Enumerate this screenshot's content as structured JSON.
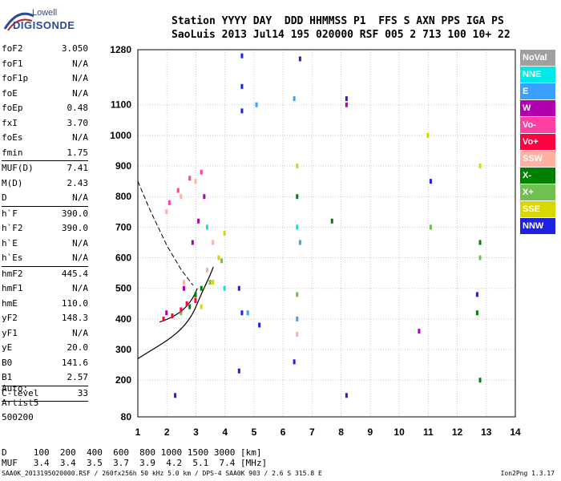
{
  "logo": {
    "top": "Lowell",
    "bottom": "DIGISONDE"
  },
  "header": {
    "line1": "Station YYYY DAY  DDD HHMMSS P1  FFS S AXN PPS IGA PS",
    "line2": "SaoLuis 2013 Jul14 195 020000 RSF 005 2 713 100 10+ 22"
  },
  "params": {
    "group1": [
      {
        "label": "foF2",
        "value": "3.050"
      },
      {
        "label": "foF1",
        "value": "N/A"
      },
      {
        "label": "foF1p",
        "value": "N/A"
      },
      {
        "label": "foE",
        "value": "N/A"
      },
      {
        "label": "foEp",
        "value": "0.48"
      },
      {
        "label": "fxI",
        "value": "3.70"
      },
      {
        "label": "foEs",
        "value": "N/A"
      },
      {
        "label": "fmin",
        "value": "1.75"
      }
    ],
    "group2": [
      {
        "label": "MUF(D)",
        "value": "7.41"
      },
      {
        "label": "M(D)",
        "value": "2.43"
      },
      {
        "label": "D",
        "value": "N/A"
      }
    ],
    "group3": [
      {
        "label": "h`F",
        "value": "390.0"
      },
      {
        "label": "h`F2",
        "value": "390.0"
      },
      {
        "label": "h`E",
        "value": "N/A"
      },
      {
        "label": "h`Es",
        "value": "N/A"
      }
    ],
    "group4": [
      {
        "label": "hmF2",
        "value": "445.4"
      },
      {
        "label": "hmF1",
        "value": "N/A"
      },
      {
        "label": "hmE",
        "value": "110.0"
      },
      {
        "label": "yF2",
        "value": "148.3"
      },
      {
        "label": "yF1",
        "value": "N/A"
      },
      {
        "label": "yE",
        "value": "20.0"
      },
      {
        "label": "B0",
        "value": "141.6"
      },
      {
        "label": "B1",
        "value": "2.57"
      }
    ],
    "group5": [
      {
        "label": "C-level",
        "value": "33"
      }
    ]
  },
  "auto": {
    "line1": "Auto:",
    "line2": "Artist5",
    "line3": "500200"
  },
  "footer": {
    "d_line": "D     100  200  400  600  800 1000 1500 3000 [km]",
    "muf_line": "MUF   3.4  3.4  3.5  3.7  3.9  4.2  5.1  7.4 [MHz]",
    "file_line": "SAA0K_2013195020000.RSF / 260fx256h 50 kHz 5.0 km / DPS-4 SAA0K 903 / 2.6 S 315.8 E",
    "version": "Ion2Png 1.3.17"
  },
  "legend": [
    {
      "label": "NoVal",
      "color": "#a0a0a0"
    },
    {
      "label": "NNE",
      "color": "#00e8e8"
    },
    {
      "label": "E",
      "color": "#3aa0ff"
    },
    {
      "label": "W",
      "color": "#b000b0"
    },
    {
      "label": "Vo-",
      "color": "#ff40a0"
    },
    {
      "label": "Vo+",
      "color": "#ff0040"
    },
    {
      "label": "SSW",
      "color": "#ffb0a0"
    },
    {
      "label": "X-",
      "color": "#008000"
    },
    {
      "label": "X+",
      "color": "#70c050"
    },
    {
      "label": "SSE",
      "color": "#d8d800"
    },
    {
      "label": "NNW",
      "color": "#2020e0"
    }
  ],
  "chart_data": {
    "type": "scatter",
    "xlim": [
      1,
      14
    ],
    "ylim": [
      80,
      1280
    ],
    "x_ticks": [
      "1",
      "2",
      "3",
      "4",
      "5",
      "6",
      "7",
      "8",
      "9",
      "10",
      "11",
      "12",
      "13",
      "14"
    ],
    "y_ticks": [
      "80",
      "200",
      "300",
      "400",
      "500",
      "600",
      "700",
      "800",
      "900",
      "1000",
      "1100",
      "1280"
    ],
    "grid": true,
    "series": [
      {
        "name": "X+",
        "color": "#70c050",
        "values": [
          [
            2.5,
            420
          ],
          [
            3.0,
            470
          ],
          [
            3.5,
            520
          ],
          [
            3.9,
            590
          ],
          [
            6.5,
            480
          ],
          [
            11.1,
            700
          ],
          [
            12.8,
            600
          ]
        ]
      },
      {
        "name": "SSE",
        "color": "#d8d800",
        "values": [
          [
            3.2,
            440
          ],
          [
            3.6,
            520
          ],
          [
            3.8,
            600
          ],
          [
            4.0,
            680
          ],
          [
            6.5,
            900
          ],
          [
            12.8,
            900
          ],
          [
            11.0,
            1000
          ]
        ]
      },
      {
        "name": "SSW",
        "color": "#ffb0a0",
        "values": [
          [
            2.0,
            750
          ],
          [
            2.5,
            800
          ],
          [
            3.0,
            850
          ],
          [
            3.4,
            560
          ],
          [
            3.6,
            650
          ],
          [
            2.6,
            520
          ],
          [
            6.5,
            350
          ]
        ]
      },
      {
        "name": "W",
        "color": "#b000b0",
        "values": [
          [
            2.0,
            420
          ],
          [
            2.6,
            500
          ],
          [
            2.9,
            650
          ],
          [
            3.1,
            720
          ],
          [
            3.3,
            800
          ],
          [
            8.2,
            1100
          ],
          [
            10.7,
            360
          ]
        ]
      },
      {
        "name": "Vo+",
        "color": "#ff0040",
        "values": [
          [
            1.9,
            400
          ],
          [
            2.2,
            410
          ],
          [
            2.5,
            430
          ],
          [
            2.7,
            450
          ],
          [
            3.0,
            460
          ]
        ]
      },
      {
        "name": "Vo-",
        "color": "#ff40a0",
        "values": [
          [
            2.1,
            780
          ],
          [
            2.4,
            820
          ],
          [
            2.8,
            860
          ],
          [
            3.2,
            880
          ]
        ]
      },
      {
        "name": "X-",
        "color": "#008000",
        "values": [
          [
            2.8,
            440
          ],
          [
            3.0,
            480
          ],
          [
            3.2,
            500
          ],
          [
            6.5,
            800
          ],
          [
            7.7,
            720
          ],
          [
            12.8,
            650
          ],
          [
            12.7,
            420
          ],
          [
            12.8,
            200
          ]
        ]
      },
      {
        "name": "E",
        "color": "#3aa0ff",
        "values": [
          [
            5.1,
            1100
          ],
          [
            6.4,
            1120
          ],
          [
            6.6,
            650
          ],
          [
            4.8,
            420
          ],
          [
            6.5,
            400
          ]
        ]
      },
      {
        "name": "NNE",
        "color": "#00e8e8",
        "values": [
          [
            6.5,
            700
          ],
          [
            4.0,
            500
          ],
          [
            3.4,
            700
          ]
        ]
      },
      {
        "name": "NNW",
        "color": "#2020e0",
        "values": [
          [
            4.6,
            1260
          ],
          [
            4.6,
            1160
          ],
          [
            6.6,
            1250
          ],
          [
            8.2,
            1120
          ],
          [
            4.5,
            500
          ],
          [
            4.6,
            420
          ],
          [
            4.5,
            230
          ],
          [
            5.2,
            380
          ],
          [
            6.4,
            260
          ],
          [
            11.1,
            850
          ],
          [
            12.7,
            480
          ],
          [
            8.2,
            150
          ],
          [
            2.3,
            150
          ],
          [
            4.6,
            1080
          ]
        ]
      },
      {
        "name": "NoVal",
        "color": "#a0a0a0",
        "values": []
      }
    ]
  }
}
